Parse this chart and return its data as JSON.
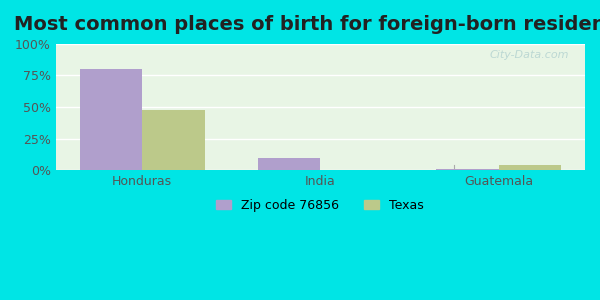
{
  "title": "Most common places of birth for foreign-born residents",
  "categories": [
    "Honduras",
    "India",
    "Guatemala"
  ],
  "zip_values": [
    80,
    10,
    1
  ],
  "texas_values": [
    48,
    0.5,
    4
  ],
  "zip_color": "#b09fcc",
  "texas_color": "#bcc98a",
  "background_outer": "#00e5e5",
  "background_inner": "#e8f5e5",
  "bar_width": 0.35,
  "ylim": [
    0,
    100
  ],
  "yticks": [
    0,
    25,
    50,
    75,
    100
  ],
  "ytick_labels": [
    "0%",
    "25%",
    "50%",
    "75%",
    "100%"
  ],
  "legend_zip_label": "Zip code 76856",
  "legend_texas_label": "Texas",
  "watermark": "City-Data.com",
  "title_fontsize": 14,
  "axis_fontsize": 9,
  "legend_fontsize": 9
}
